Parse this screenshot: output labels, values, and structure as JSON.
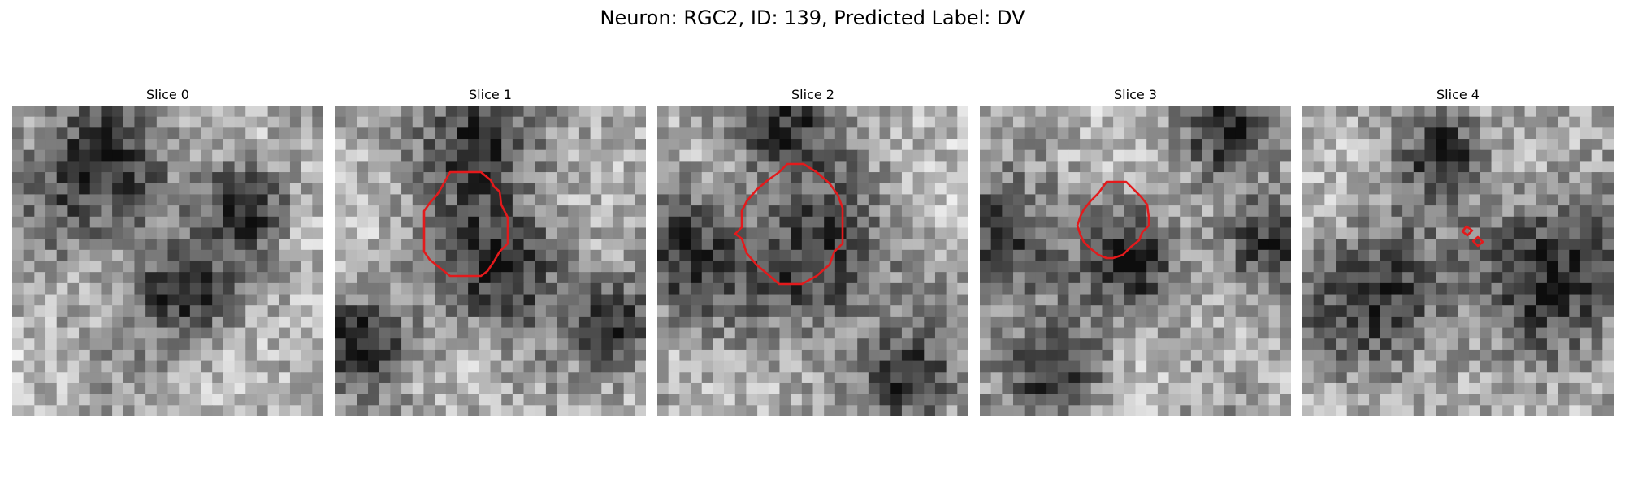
{
  "figure": {
    "title": "Neuron: RGC2, ID: 139, Predicted Label: DV"
  },
  "slices": [
    {
      "title": "Slice 0",
      "seed": 11,
      "dark_regions": [
        [
          0.27,
          0.22,
          0.28
        ],
        [
          0.55,
          0.6,
          0.2
        ],
        [
          0.75,
          0.32,
          0.15
        ]
      ],
      "has_contour": false
    },
    {
      "title": "Slice 1",
      "seed": 23,
      "dark_regions": [
        [
          0.53,
          0.52,
          0.26
        ],
        [
          0.45,
          0.1,
          0.22
        ],
        [
          0.08,
          0.78,
          0.18
        ],
        [
          0.92,
          0.7,
          0.16
        ]
      ],
      "has_contour": true
    },
    {
      "title": "Slice 2",
      "seed": 37,
      "dark_regions": [
        [
          0.52,
          0.5,
          0.27
        ],
        [
          0.08,
          0.48,
          0.22
        ],
        [
          0.8,
          0.88,
          0.18
        ],
        [
          0.4,
          0.07,
          0.2
        ]
      ],
      "has_contour": true
    },
    {
      "title": "Slice 3",
      "seed": 51,
      "dark_regions": [
        [
          0.49,
          0.5,
          0.18
        ],
        [
          0.06,
          0.45,
          0.24
        ],
        [
          0.92,
          0.45,
          0.18
        ],
        [
          0.25,
          0.85,
          0.18
        ],
        [
          0.8,
          0.06,
          0.18
        ]
      ],
      "has_contour": true
    },
    {
      "title": "Slice 4",
      "seed": 67,
      "dark_regions": [
        [
          0.25,
          0.62,
          0.26
        ],
        [
          0.82,
          0.52,
          0.3
        ],
        [
          0.45,
          0.15,
          0.15
        ]
      ],
      "has_contour": true
    }
  ],
  "colors": {
    "contour": "#e31a1c",
    "background": "#ffffff"
  }
}
